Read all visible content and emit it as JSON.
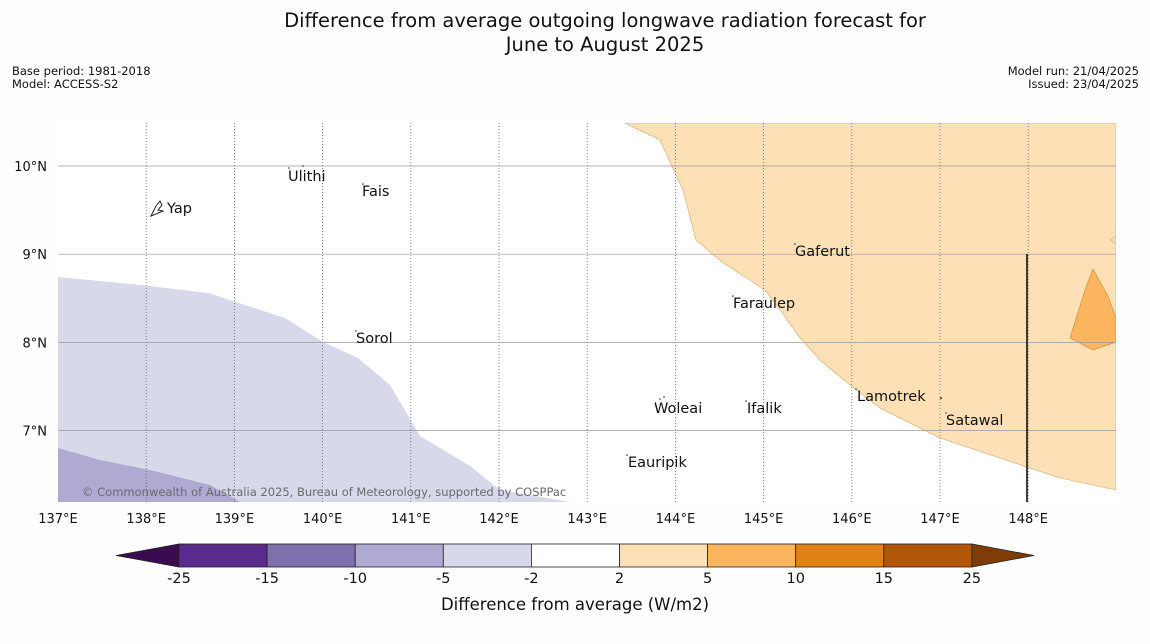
{
  "title_line1": "Difference from average outgoing longwave radiation forecast for",
  "title_line2": "June to August 2025",
  "base_period": "Base period: 1981-2018",
  "model": "Model: ACCESS-S2",
  "model_run": "Model run: 21/04/2025",
  "issued": "Issued: 23/04/2025",
  "credit": "© Commonwealth of Australia 2025, Bureau of Meteorology, supported by COSPPac",
  "lon_labels": [
    "137°E",
    "138°E",
    "139°E",
    "140°E",
    "141°E",
    "142°E",
    "143°E",
    "144°E",
    "145°E",
    "146°E",
    "147°E",
    "148°E"
  ],
  "lat_labels": [
    "10°N",
    "9°N",
    "8°N",
    "7°N"
  ],
  "places": {
    "yap": "Yap",
    "ulithi": "Ulithi",
    "fais": "Fais",
    "sorol": "Sorol",
    "gaferut": "Gaferut",
    "faraulep": "Faraulep",
    "woleai": "Woleai",
    "ifalik": "Ifalik",
    "lamotrek": "Lamotrek",
    "satawal": "Satawal",
    "eauripik": "Eauripik"
  },
  "colorbar": {
    "label": "Difference from average (W/m2)",
    "ticks": [
      "-25",
      "-15",
      "-10",
      "-5",
      "-2",
      "2",
      "5",
      "10",
      "15",
      "25"
    ],
    "colors": {
      "below_min": "#3b0b4f",
      "c1": "#5a2a8c",
      "c2": "#7f6fac",
      "c3": "#b0a9d2",
      "c4": "#d7d8ea",
      "c5": "#ffffff",
      "c6": "#fde0b6",
      "c7": "#fbb55e",
      "c8": "#e08215",
      "c9": "#b25608",
      "above_max": "#7f3c08"
    }
  }
}
